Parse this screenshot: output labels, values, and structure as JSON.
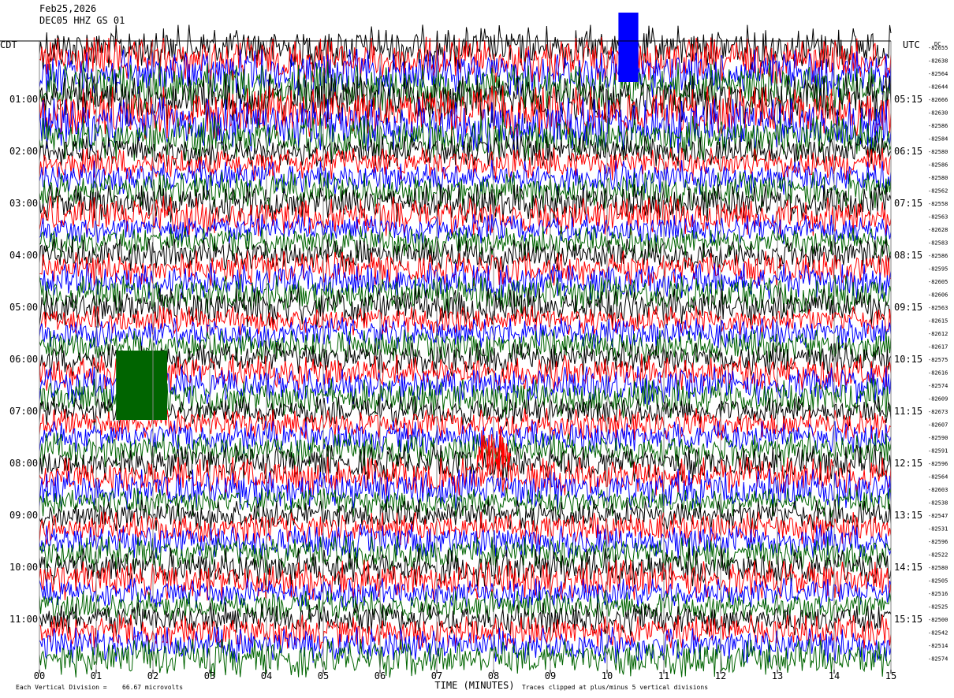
{
  "header": {
    "date": "Feb25,2026",
    "station": "DEC05 HHZ GS 01"
  },
  "left_tz": "CDT",
  "right_tz": "UTC",
  "dc_label": "DC",
  "chart_data": {
    "type": "helicorder",
    "xlabel": "TIME (MINUTES)",
    "xticks": [
      "00",
      "01",
      "02",
      "03",
      "04",
      "05",
      "06",
      "07",
      "08",
      "09",
      "10",
      "11",
      "12",
      "13",
      "14",
      "15"
    ],
    "xlim": [
      0,
      15
    ],
    "left_hour_labels": [
      "01:00",
      "02:00",
      "03:00",
      "04:00",
      "05:00",
      "06:00",
      "07:00",
      "08:00",
      "09:00",
      "10:00",
      "11:00"
    ],
    "right_hour_labels": [
      "05:15",
      "06:15",
      "07:15",
      "08:15",
      "09:15",
      "10:15",
      "11:15",
      "12:15",
      "13:15",
      "14:15",
      "15:15"
    ],
    "dc_offsets": [
      "-82655",
      "-82638",
      "-82564",
      "-82644",
      "-82666",
      "-82630",
      "-82586",
      "-82584",
      "-82580",
      "-82586",
      "-82580",
      "-82562",
      "-82558",
      "-82563",
      "-82628",
      "-82583",
      "-82586",
      "-82595",
      "-82605",
      "-82606",
      "-82563",
      "-82615",
      "-82612",
      "-82617",
      "-82575",
      "-82616",
      "-82574",
      "-82609",
      "-82673",
      "-82607",
      "-82590",
      "-82591",
      "-82596",
      "-82564",
      "-82603",
      "-82538",
      "-82547",
      "-82531",
      "-82596",
      "-82522",
      "-82580",
      "-82505",
      "-82516",
      "-82525",
      "-82500",
      "-82542",
      "-82514",
      "-82574"
    ],
    "trace_colors": [
      "#000000",
      "#ff0000",
      "#0000ff",
      "#006400"
    ],
    "traces_per_hour": 4,
    "minutes_per_trace": 15,
    "events": [
      {
        "trace_time_cdt": "06:30",
        "minute_start": 1.35,
        "minute_end": 2.25,
        "color": "#006400",
        "note": "clipped burst"
      },
      {
        "trace_time_cdt": "00:00",
        "minute_start": 10.2,
        "minute_end": 10.55,
        "color": "#0000ff",
        "note": "clipped burst"
      },
      {
        "trace_time_cdt": "07:45",
        "minute_start": 7.7,
        "minute_end": 8.3,
        "color": "#ff0000",
        "note": "local event"
      }
    ]
  },
  "footer": {
    "division_label": "Each Vertical Division =",
    "division_value": "66.67 microvolts",
    "clip_note": "Traces clipped at plus/minus 5 vertical divisions"
  }
}
